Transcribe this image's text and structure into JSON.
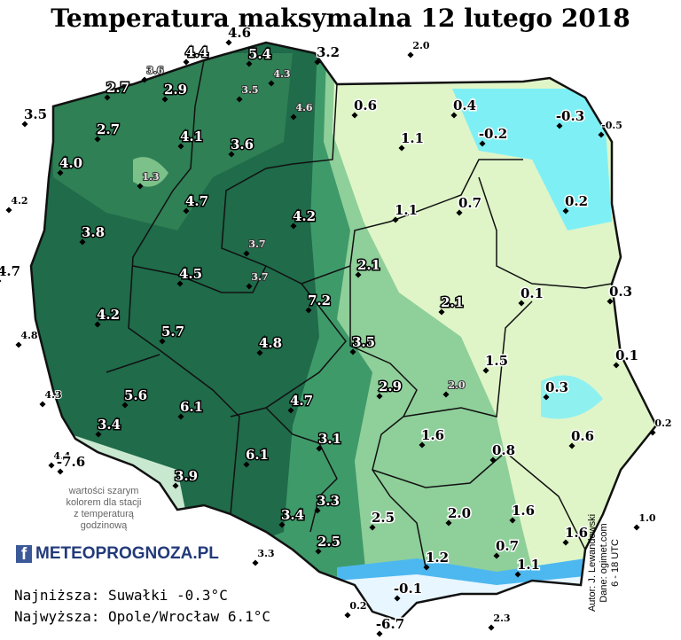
{
  "title": "Temperatura maksymalna 12 lutego 2018",
  "stations": [
    "4.6",
    "4.4",
    "5.4",
    "3.2",
    "2.0",
    "3.6",
    "4.3",
    "2.7",
    "2.9",
    "3.5",
    "3.5",
    "0.6",
    "0.4",
    "4.6",
    "-0.3",
    "-0.5",
    "2.7",
    "4.1",
    "-0.2",
    "1.1",
    "3.6",
    "4.0",
    "1.3",
    "4.2",
    "4.7",
    "0.2",
    "1.1",
    "0.7",
    "4.2",
    "3.8",
    "3.7",
    "4.7",
    "2.1",
    "4.5",
    "3.7",
    "0.1",
    "0.3",
    "7.2",
    "2.1",
    "4.2",
    "4.8",
    "5.7",
    "4.8",
    "3.5",
    "0.1",
    "1.5",
    "4.3",
    "5.6",
    "2.9",
    "2.0",
    "0.3",
    "6.1",
    "4.7",
    "0.2",
    "3.4",
    "1.6",
    "0.6",
    "4.4",
    "-7.6",
    "3.1",
    "0.8",
    "6.1",
    "3.9",
    "3.3",
    "1.6",
    "3.4",
    "2.5",
    "2.0",
    "1.0",
    "1.6",
    "2.5",
    "3.3",
    "0.7",
    "1.2",
    "1.1",
    "-0.1",
    "0.2",
    "-6.7",
    "2.3"
  ],
  "note": [
    "wartości szarym",
    "kolorem dla stacji",
    "z temperaturą",
    "godzinową"
  ],
  "logo": {
    "icon": "f",
    "text": "METEOPROGNOZA.PL"
  },
  "summary": [
    "Najniższa: Suwałki -0.3°C",
    "Najwyższa: Opole/Wrocław 6.1°C"
  ],
  "credits": [
    "Autor: J. Lewandowski",
    "Dane: ogimet.com",
    "6 - 18 UTC"
  ]
}
